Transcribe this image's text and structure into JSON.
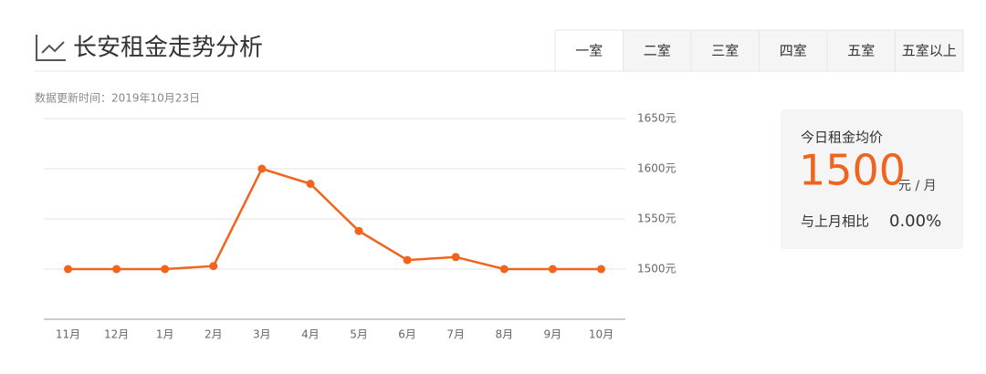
{
  "header": {
    "title": "长安租金走势分析",
    "update_time": "数据更新时间：2019年10月23日"
  },
  "tabs": [
    "一室",
    "二室",
    "三室",
    "四室",
    "五室",
    "五室以上"
  ],
  "summary": {
    "label": "今日租金均价",
    "price": 1500,
    "unit": "元 / 月",
    "change_label": "与上月相比",
    "change": "0.00%"
  },
  "chart_data": {
    "type": "line",
    "categories": [
      "11月",
      "12月",
      "1月",
      "2月",
      "3月",
      "4月",
      "5月",
      "6月",
      "7月",
      "8月",
      "9月",
      "10月"
    ],
    "series": [
      {
        "name": "租金",
        "color": "#f0641e",
        "values": [
          1500,
          1500,
          1500,
          1503,
          1600,
          1585,
          1538,
          1509,
          1512,
          1500,
          1500,
          1500
        ]
      }
    ],
    "ylim": [
      1450,
      1650
    ],
    "yticks": [
      {
        "value": 1500,
        "label": "1500元"
      },
      {
        "value": 1550,
        "label": "1550元"
      },
      {
        "value": 1600,
        "label": "1600元"
      },
      {
        "value": 1650,
        "label": "1650元"
      }
    ],
    "grid": true
  }
}
